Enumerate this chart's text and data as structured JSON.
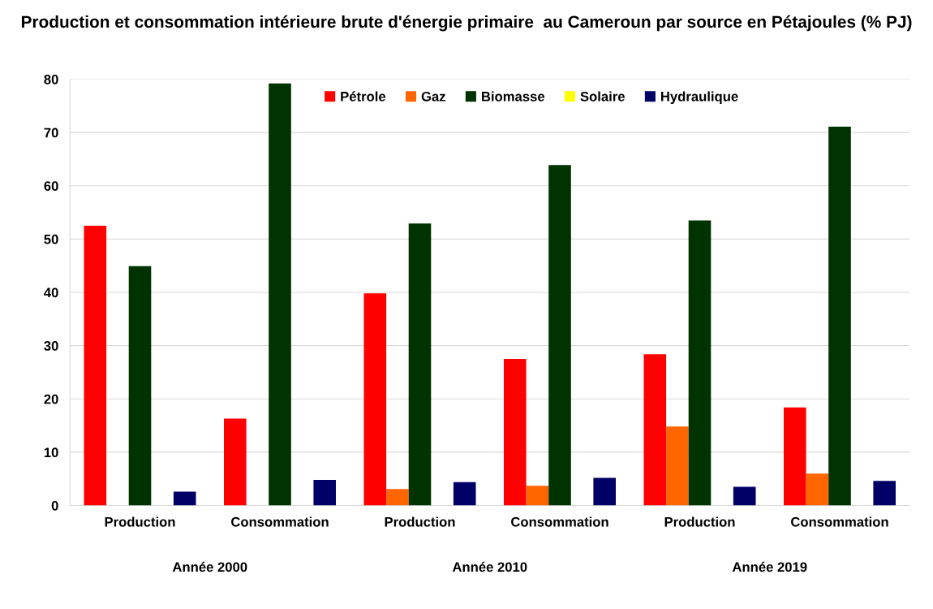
{
  "chart_data": {
    "type": "bar",
    "title": "Production et consommation intérieure brute d'énergie primaire  au Cameroun par source en Pétajoules (% PJ)",
    "categories": [
      "Production",
      "Consommation",
      "Production",
      "Consommation",
      "Production",
      "Consommation"
    ],
    "annotations": [
      "Année 2000",
      "Année 2010",
      "Année 2019"
    ],
    "series": [
      {
        "name": "Pétrole",
        "color": "#ff0000",
        "values": [
          52.5,
          16.3,
          39.8,
          27.5,
          28.4,
          18.4
        ]
      },
      {
        "name": "Gaz",
        "color": "#ff6600",
        "values": [
          0,
          0,
          3.1,
          3.7,
          14.8,
          6.0
        ]
      },
      {
        "name": "Biomasse",
        "color": "#003300",
        "values": [
          44.9,
          79.2,
          52.9,
          63.9,
          53.5,
          71.1
        ]
      },
      {
        "name": "Solaire",
        "color": "#ffff00",
        "values": [
          0,
          0,
          0,
          0,
          0,
          0
        ]
      },
      {
        "name": "Hydraulique",
        "color": "#000066",
        "values": [
          2.6,
          4.8,
          4.4,
          5.2,
          3.5,
          4.6
        ]
      }
    ],
    "ylim": [
      0,
      80
    ],
    "yticks": [
      0,
      10,
      20,
      30,
      40,
      50,
      60,
      70,
      80
    ],
    "grid": "y",
    "legend": "top"
  }
}
